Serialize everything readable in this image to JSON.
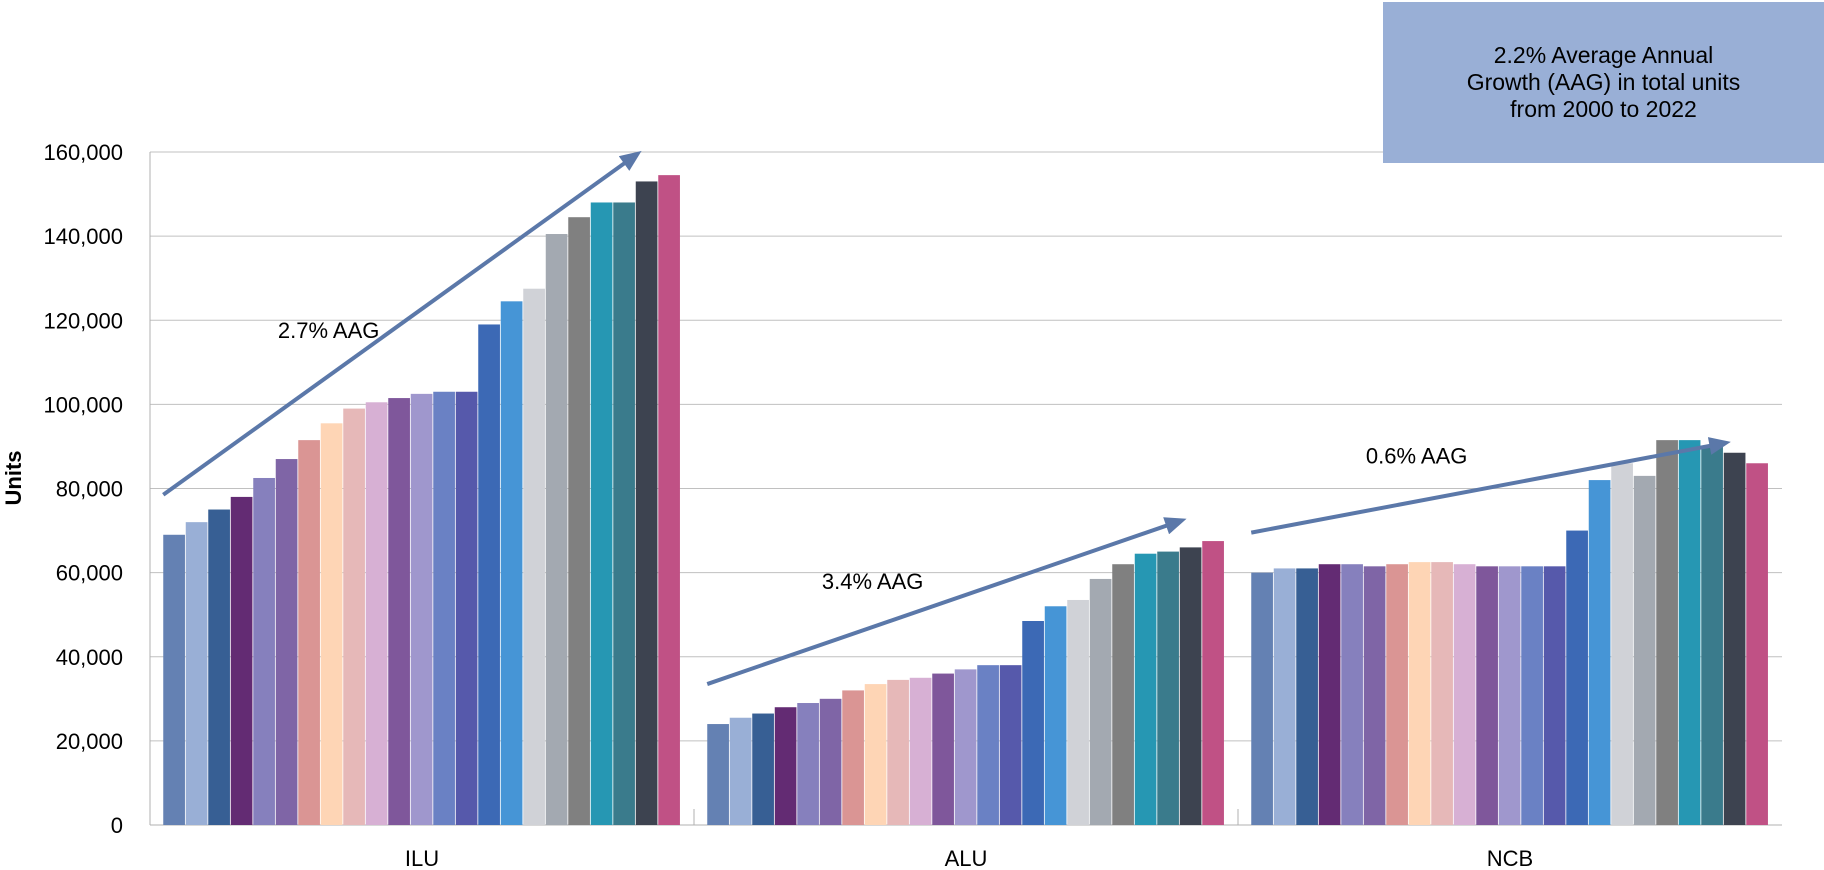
{
  "chart_data": {
    "type": "bar",
    "ylabel": "Units",
    "ylim": [
      0,
      160000
    ],
    "yticks": [
      0,
      20000,
      40000,
      60000,
      80000,
      100000,
      120000,
      140000,
      160000
    ],
    "ytick_labels": [
      "0",
      "20,000",
      "40,000",
      "60,000",
      "80,000",
      "100,000",
      "120,000",
      "140,000",
      "160,000"
    ],
    "grid": true,
    "categories": [
      "ILU",
      "ALU",
      "NCB"
    ],
    "series": [
      {
        "color": "#6481b3",
        "values": [
          69000,
          24000,
          60000
        ]
      },
      {
        "color": "#99afd6",
        "values": [
          72000,
          25500,
          61000
        ]
      },
      {
        "color": "#375f94",
        "values": [
          75000,
          26500,
          61000
        ]
      },
      {
        "color": "#632b73",
        "values": [
          78000,
          28000,
          62000
        ]
      },
      {
        "color": "#8680bd",
        "values": [
          82500,
          29000,
          62000
        ]
      },
      {
        "color": "#7f65a6",
        "values": [
          87000,
          30000,
          61500
        ]
      },
      {
        "color": "#da9594",
        "values": [
          91500,
          32000,
          62000
        ]
      },
      {
        "color": "#fed5b5",
        "values": [
          95500,
          33500,
          62500
        ]
      },
      {
        "color": "#e6b8b8",
        "values": [
          99000,
          34500,
          62500
        ]
      },
      {
        "color": "#d7b0d4",
        "values": [
          100500,
          35000,
          62000
        ]
      },
      {
        "color": "#7f579b",
        "values": [
          101500,
          36000,
          61500
        ]
      },
      {
        "color": "#9f97cd",
        "values": [
          102500,
          37000,
          61500
        ]
      },
      {
        "color": "#6a81c4",
        "values": [
          103000,
          38000,
          61500
        ]
      },
      {
        "color": "#5659ab",
        "values": [
          103000,
          38000,
          61500
        ]
      },
      {
        "color": "#3c69b5",
        "values": [
          119000,
          48500,
          70000
        ]
      },
      {
        "color": "#4695d6",
        "values": [
          124500,
          52000,
          82000
        ]
      },
      {
        "color": "#d0d2d7",
        "values": [
          127500,
          53500,
          86000
        ]
      },
      {
        "color": "#a3a9b1",
        "values": [
          140500,
          58500,
          83000
        ]
      },
      {
        "color": "#808080",
        "values": [
          144500,
          62000,
          91500
        ]
      },
      {
        "color": "#2697b3",
        "values": [
          148000,
          64500,
          91500
        ]
      },
      {
        "color": "#3a7b8c",
        "values": [
          148000,
          65000,
          90000
        ]
      },
      {
        "color": "#3d4350",
        "values": [
          153000,
          66000,
          88500
        ]
      },
      {
        "color": "#c05185",
        "values": [
          154500,
          67500,
          86000
        ]
      }
    ],
    "annotations": [
      {
        "text": "2.7% AAG",
        "category": "ILU"
      },
      {
        "text": "3.4%  AAG",
        "category": "ALU"
      },
      {
        "text": "0.6% AAG",
        "category": "NCB"
      }
    ],
    "info_box": "2.2% Average Annual\nGrowth (AAG) in total  units\n from 2000 to 2022",
    "arrow_color": "#5b78a9",
    "grid_color": "#c0c0c0"
  }
}
